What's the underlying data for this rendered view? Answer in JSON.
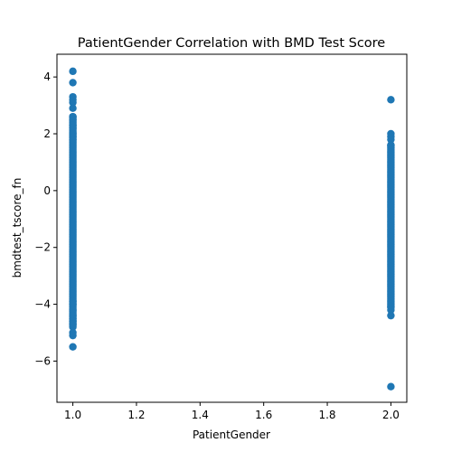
{
  "chart_data": {
    "type": "scatter",
    "title": "PatientGender Correlation with BMD Test Score",
    "xlabel": "PatientGender",
    "ylabel": "bmdtest_tscore_fn",
    "xlim": [
      0.95,
      2.05
    ],
    "ylim": [
      -7.45,
      4.8
    ],
    "xticks": [
      "1.0",
      "1.2",
      "1.4",
      "1.6",
      "1.8",
      "2.0"
    ],
    "yticks": [
      "4",
      "2",
      "0",
      "−2",
      "−4",
      "−6"
    ],
    "grid": false,
    "marker_color": "#1f77b4",
    "series": [
      {
        "x": 1.0,
        "y_dense_range": [
          -4.8,
          2.6
        ],
        "y_points": [
          4.2,
          3.8,
          3.3,
          3.2,
          3.1,
          2.9,
          2.6,
          2.5,
          2.3,
          2.2,
          2.0,
          1.9,
          1.8,
          -3.9,
          -4.0,
          -4.2,
          -4.4,
          -4.5,
          -4.6,
          -4.7,
          -5.0,
          -5.1,
          -5.5
        ]
      },
      {
        "x": 2.0,
        "y_dense_range": [
          -4.1,
          1.6
        ],
        "y_points": [
          3.2,
          2.0,
          1.9,
          1.8,
          1.6,
          -4.1,
          -4.2,
          -4.4,
          -6.9
        ]
      }
    ]
  }
}
